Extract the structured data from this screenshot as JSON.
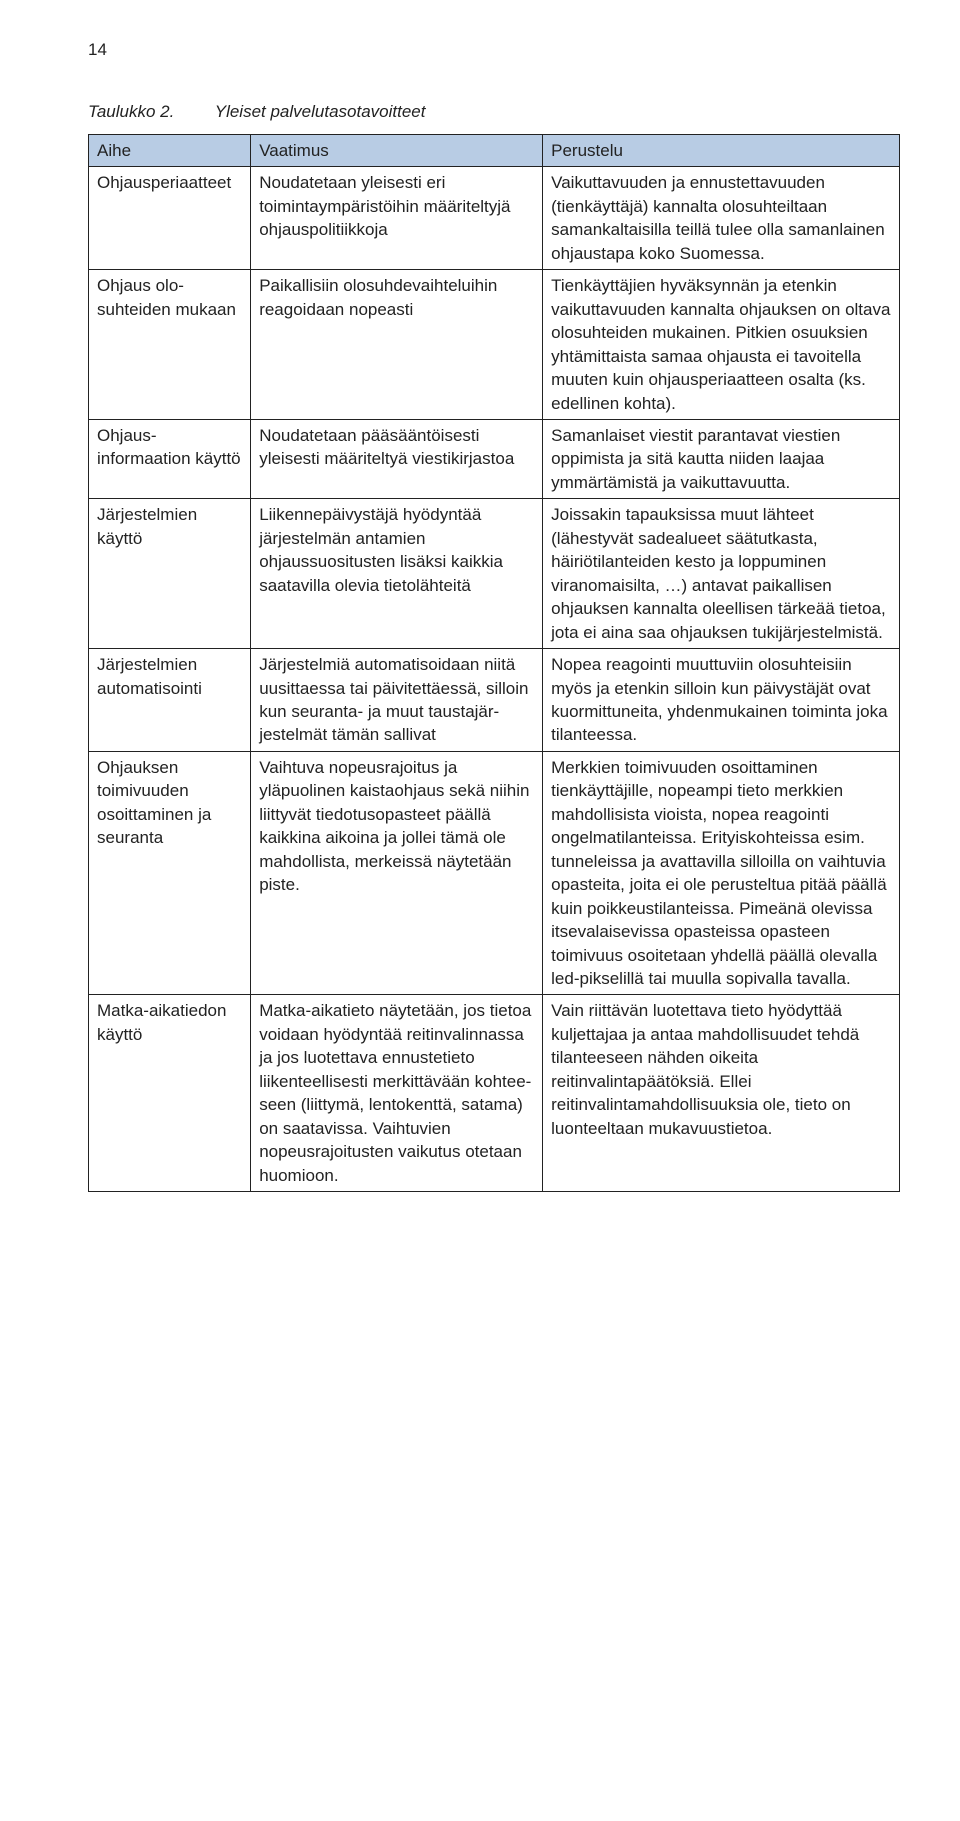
{
  "page": {
    "number": "14"
  },
  "caption": {
    "label": "Taulukko 2.",
    "text": "Yleiset palvelutasotavoitteet"
  },
  "table": {
    "header_bg": "#b8cce4",
    "border_color": "#222222",
    "columns": [
      "Aihe",
      "Vaatimus",
      "Perustelu"
    ],
    "rows": [
      {
        "aihe": "Ohjaus­periaatteet",
        "vaatimus": "Noudatetaan yleisesti eri toimintaympäristöihin mää­riteltyjä ohjauspolitiikkoja",
        "perustelu": "Vaikuttavuuden ja ennustettavuuden (tienkäyttäjä) kannalta olosuhteil­taan samankaltaisilla teillä tulee olla samanlainen ohjaustapa koko Suo­messa."
      },
      {
        "aihe": "Ohjaus olo­suhteiden mukaan",
        "vaatimus": "Paikallisiin olosuhdevaihte­luihin reagoidaan nopeasti",
        "perustelu": "Tienkäyttäjien hyväksynnän ja eten­kin vaikuttavuuden kannalta ohjauk­sen on oltava olosuhteiden mukai­nen. Pitkien osuuksien yhtämittaista samaa ohjausta ei tavoitella muuten kuin ohjausperiaatteen osalta (ks. edellinen kohta)."
      },
      {
        "aihe": "Ohjaus­informaation käyttö",
        "vaatimus": "Noudatetaan pääsääntöisesti yleisesti määriteltyä viesti­kirjastoa",
        "perustelu": "Samanlaiset viestit parantavat vies­tien oppimista ja sitä kautta niiden laajaa ymmärtämistä ja vaikutta­vuutta."
      },
      {
        "aihe": "Järjestelmien käyttö",
        "vaatimus": "Liikennepäivystäjä hyödyn­tää järjestelmän antamien ohjaussuositusten lisäksi kaikkia saatavilla olevia tie­tolähteitä",
        "perustelu": "Joissakin tapauksissa muut lähteet (lähestyvät sadealueet säätutkasta, häiriötilanteiden kesto ja loppumi­nen viranomaisilta, …) antavat pai­kallisen ohjauksen kannalta oleelli­sen tärkeää tietoa, jota ei aina saa ohjauksen tukijärjestelmistä."
      },
      {
        "aihe": "Järjestelmien automatisoin­ti",
        "vaatimus": "Järjestelmiä automatisoi­daan niitä uusittaessa tai päivitettäessä, silloin kun seuranta- ja muut taustajär­jestelmät tämän sallivat",
        "perustelu": "Nopea reagointi muuttuviin olosuh­teisiin myös ja etenkin silloin kun päivystäjät ovat kuormittuneita, yh­denmukainen toiminta joka tilan­teessa."
      },
      {
        "aihe": "Ohjauksen toimivuuden osoittaminen ja seuranta",
        "vaatimus": "Vaihtuva nopeusrajoitus ja yläpuolinen kaistaohjaus se­kä niihin liittyvät tiedo­tusopasteet päällä kaikkina aikoina ja jollei tämä ole mahdollista, merkeissä näy­tetään piste.",
        "perustelu": "Merkkien toimivuuden osoittaminen tienkäyttäjille, nopeampi tieto merk­kien mahdollisista vioista, nopea reagointi ongelmatilanteissa. Erityiskohteissa esim. tunneleissa ja avattavilla silloilla on vaihtuvia opasteita, joita ei ole perusteltua pitää päällä kuin poikkeustilanteis­sa. Pimeänä olevissa itsevalaisevissa opasteissa opasteen toimivuus osoi­tetaan yhdellä päällä olevalla led-pikselillä tai muulla sopivalla tavalla."
      },
      {
        "aihe": "Matka-aikatiedon käyttö",
        "vaatimus": "Matka-aikatieto näytetään, jos tietoa voidaan hyödyntää reitinvalinnassa ja jos luotet­tava ennustetieto liikenteel­lisesti merkittävään kohtee­seen (liittymä, lentokenttä, satama) on saatavissa. Vaih­tuvien nopeusrajoitusten vaikutus otetaan huomioon.",
        "perustelu": "Vain riittävän luotettava tieto hyö­dyttää kuljettajaa ja antaa mahdolli­suudet tehdä tilanteeseen nähden oikeita reitinvalintapäätöksiä. Ellei reitinvalintamahdollisuuksia ole, tieto on luonteeltaan mukavuus­tietoa."
      }
    ]
  }
}
